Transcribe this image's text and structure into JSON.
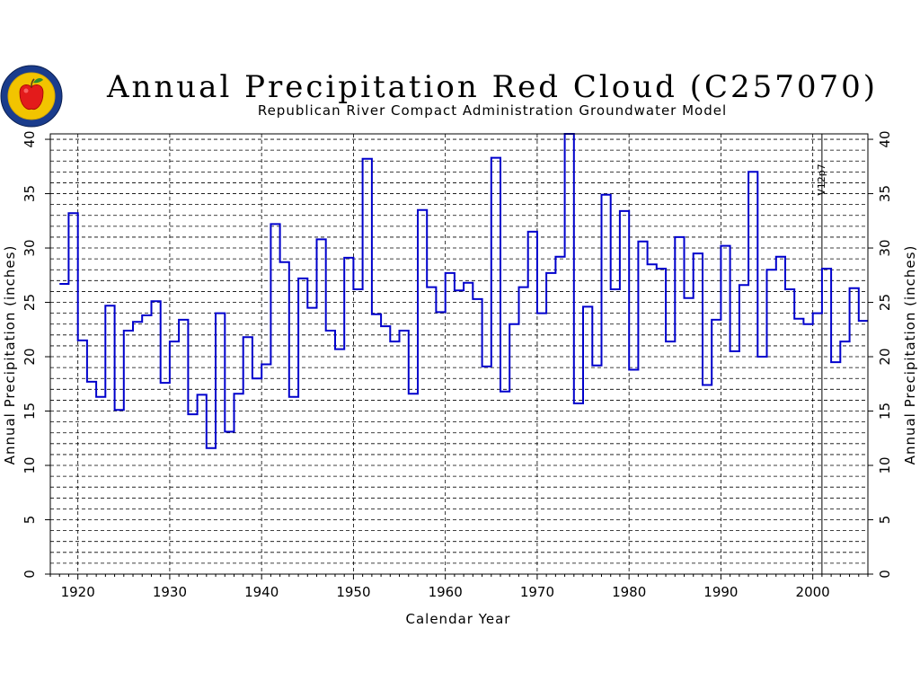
{
  "logo": {
    "name": "Republican River Compact Administration logo"
  },
  "chart_data": {
    "type": "step",
    "title": "Annual Precipitation Red Cloud (C257070)",
    "subtitle": "Republican River Compact Administration Groundwater Model",
    "xlabel": "Calendar Year",
    "ylabel": "Annual Precipitation (inches)",
    "ylabel_right": "Annual Precipitation (inches)",
    "xlim": [
      1917,
      2006
    ],
    "ylim": [
      0,
      40.5
    ],
    "xticks": [
      1920,
      1930,
      1940,
      1950,
      1960,
      1970,
      1980,
      1990,
      2000
    ],
    "yticks": [
      0,
      5,
      10,
      15,
      20,
      25,
      30,
      35,
      40
    ],
    "grid": true,
    "line_color": "#0000cc",
    "annotation": {
      "text": "V12p7",
      "x": 2001
    },
    "series": [
      {
        "x": [
          1918,
          1919,
          1920,
          1921,
          1922,
          1923,
          1924,
          1925,
          1926,
          1927,
          1928,
          1929,
          1930,
          1931,
          1932,
          1933,
          1934,
          1935,
          1936,
          1937,
          1938,
          1939,
          1940,
          1941,
          1942,
          1943,
          1944,
          1945,
          1946,
          1947,
          1948,
          1949,
          1950,
          1951,
          1952,
          1953,
          1954,
          1955,
          1956,
          1957,
          1958,
          1959,
          1960,
          1961,
          1962,
          1963,
          1964,
          1965,
          1966,
          1967,
          1968,
          1969,
          1970,
          1971,
          1972,
          1973,
          1974,
          1975,
          1976,
          1977,
          1978,
          1979,
          1980,
          1981,
          1982,
          1983,
          1984,
          1985,
          1986,
          1987,
          1988,
          1989,
          1990,
          1991,
          1992,
          1993,
          1994,
          1995,
          1996,
          1997,
          1998,
          1999,
          2000,
          2001,
          2002,
          2003,
          2004,
          2005
        ],
        "values": [
          26.7,
          33.2,
          21.5,
          17.7,
          16.3,
          24.7,
          15.1,
          22.4,
          23.2,
          23.8,
          25.1,
          17.6,
          21.4,
          23.4,
          14.7,
          16.5,
          11.6,
          24.0,
          13.1,
          16.6,
          21.8,
          18.0,
          19.3,
          32.2,
          28.7,
          16.3,
          27.2,
          24.5,
          30.8,
          22.4,
          20.7,
          29.1,
          26.2,
          38.2,
          23.9,
          22.8,
          21.4,
          22.4,
          16.6,
          33.5,
          26.4,
          24.1,
          27.7,
          26.1,
          26.8,
          25.3,
          19.1,
          38.3,
          16.8,
          23.0,
          26.4,
          31.5,
          24.0,
          27.7,
          29.2,
          40.5,
          15.7,
          24.6,
          19.2,
          34.9,
          26.2,
          33.4,
          18.8,
          30.6,
          28.5,
          28.1,
          21.4,
          31.0,
          25.4,
          29.5,
          17.4,
          23.4,
          30.2,
          20.5,
          26.6,
          37.0,
          20.0,
          28.0,
          29.2,
          26.2,
          23.5,
          23.0,
          24.0,
          28.1,
          19.5,
          21.4,
          26.3,
          23.3
        ]
      }
    ]
  }
}
